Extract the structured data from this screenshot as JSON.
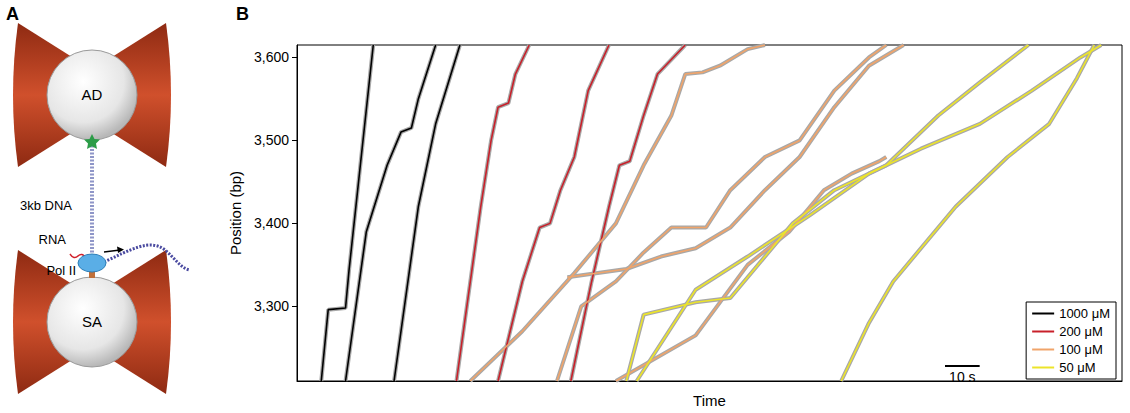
{
  "panel_labels": [
    "A",
    "B"
  ],
  "diagram": {
    "top_bead": "AD",
    "dna": "3kb DNA",
    "rna": "RNA",
    "polymerase": "Pol II",
    "bottom_bead": "SA"
  },
  "chart_data": {
    "type": "line",
    "x_label": "Time",
    "y_label": "Position (bp)",
    "xlim": [
      0,
      238
    ],
    "ylim": [
      3210,
      3615
    ],
    "yticks": [
      3300,
      3400,
      3500,
      3600
    ],
    "tick_labels": "y",
    "grid": false,
    "legend": "lower right",
    "scale_bar": {
      "value": 10,
      "label": "10 s"
    },
    "series": [
      {
        "name": "1000 μM",
        "color": "#000000",
        "traces": [
          {
            "x": [
              7,
              9,
              14,
              15,
              22
            ],
            "values": [
              3210,
              3296,
              3298,
              3343,
              3615
            ]
          },
          {
            "x": [
              14,
              20,
              26,
              30,
              33,
              35,
              40
            ],
            "values": [
              3210,
              3390,
              3470,
              3510,
              3515,
              3550,
              3615
            ]
          },
          {
            "x": [
              28,
              35,
              40,
              47
            ],
            "values": [
              3210,
              3420,
              3520,
              3615
            ]
          }
        ]
      },
      {
        "name": "200 μM",
        "color": "#c8202a",
        "traces": [
          {
            "x": [
              46,
              53,
              56,
              58,
              61,
              63,
              67
            ],
            "values": [
              3210,
              3420,
              3500,
              3540,
              3545,
              3580,
              3615
            ]
          },
          {
            "x": [
              58,
              65,
              70,
              73,
              76,
              80,
              84,
              90
            ],
            "values": [
              3210,
              3330,
              3395,
              3400,
              3440,
              3480,
              3560,
              3615
            ]
          },
          {
            "x": [
              79,
              85,
              90,
              93,
              96,
              100,
              104,
              112
            ],
            "values": [
              3210,
              3330,
              3420,
              3470,
              3475,
              3530,
              3580,
              3615
            ]
          }
        ]
      },
      {
        "name": "100 μM",
        "color": "#f0a46a",
        "traces": [
          {
            "x": [
              50,
              65,
              80,
              92,
              100,
              108,
              112,
              117,
              122,
              130,
              135
            ],
            "values": [
              3210,
              3270,
              3340,
              3400,
              3470,
              3530,
              3580,
              3582,
              3590,
              3610,
              3615
            ]
          },
          {
            "x": [
              78,
              95,
              105,
              115,
              125,
              135,
              145,
              155,
              165,
              175
            ],
            "values": [
              3335,
              3345,
              3360,
              3370,
              3395,
              3440,
              3480,
              3540,
              3590,
              3615
            ]
          },
          {
            "x": [
              75,
              82,
              92,
              100,
              108,
              118,
              125,
              135,
              145,
              155,
              165,
              170
            ],
            "values": [
              3210,
              3300,
              3330,
              3365,
              3395,
              3395,
              3440,
              3480,
              3500,
              3560,
              3600,
              3615
            ]
          },
          {
            "x": [
              92,
              115,
              130,
              142,
              152,
              160,
              168,
              170
            ],
            "values": [
              3210,
              3265,
              3350,
              3390,
              3440,
              3460,
              3475,
              3480
            ]
          }
        ]
      },
      {
        "name": "50 μM",
        "color": "#ece42a",
        "traces": [
          {
            "x": [
              95,
              100,
              115,
              125,
              132,
              143,
              155,
              170,
              185,
              197,
              211
            ],
            "values": [
              3210,
              3290,
              3305,
              3310,
              3345,
              3400,
              3440,
              3470,
              3530,
              3570,
              3615
            ]
          },
          {
            "x": [
              98,
              115,
              130,
              148,
              165,
              180,
              197,
              212,
              226,
              232
            ],
            "values": [
              3210,
              3320,
              3360,
              3410,
              3460,
              3490,
              3520,
              3560,
              3600,
              3615
            ]
          },
          {
            "x": [
              157,
              165,
              172,
              190,
              205,
              217,
              225,
              230
            ],
            "values": [
              3210,
              3280,
              3330,
              3420,
              3480,
              3520,
              3575,
              3615
            ]
          }
        ]
      }
    ]
  }
}
